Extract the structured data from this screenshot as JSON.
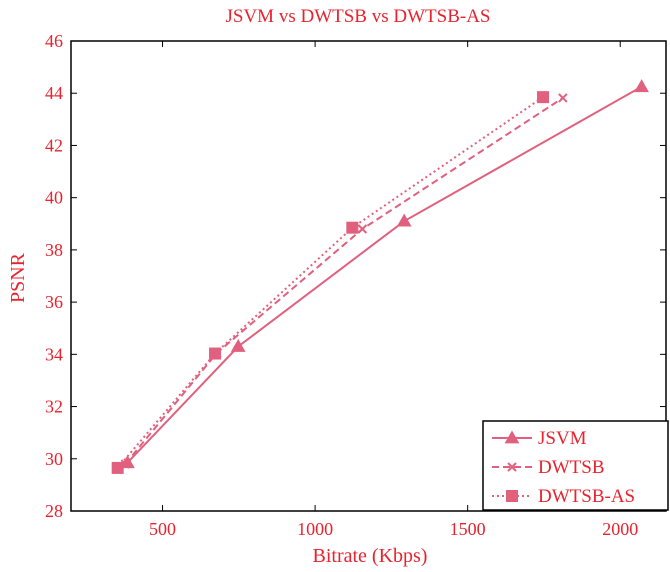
{
  "colors": {
    "series": "#e0607e",
    "text": "#e8232e",
    "axes": "#000000",
    "background": "#ffffff"
  },
  "chart_data": {
    "type": "line",
    "title": "JSVM vs DWTSB vs DWTSB-AS",
    "xlabel": "Bitrate (Kbps)",
    "ylabel": "PSNR",
    "xlim": [
      200,
      2150
    ],
    "ylim": [
      28,
      46
    ],
    "xticks": [
      500,
      1000,
      1500,
      2000
    ],
    "yticks": [
      28,
      30,
      32,
      34,
      36,
      38,
      40,
      42,
      44,
      46
    ],
    "grid": false,
    "legend_position": "bottom-right",
    "series": [
      {
        "name": "JSVM",
        "linestyle": "solid",
        "marker": "triangle",
        "x": [
          385,
          748,
          1292,
          2070
        ],
        "y": [
          29.85,
          34.3,
          39.1,
          44.25
        ]
      },
      {
        "name": "DWTSB",
        "linestyle": "dashed",
        "marker": "x",
        "x": [
          378,
          678,
          1155,
          1812
        ],
        "y": [
          29.8,
          34.05,
          38.8,
          43.82
        ]
      },
      {
        "name": "DWTSB-AS",
        "linestyle": "dotted",
        "marker": "square",
        "x": [
          353,
          672,
          1122,
          1747
        ],
        "y": [
          29.65,
          34.03,
          38.85,
          43.85
        ]
      }
    ]
  }
}
